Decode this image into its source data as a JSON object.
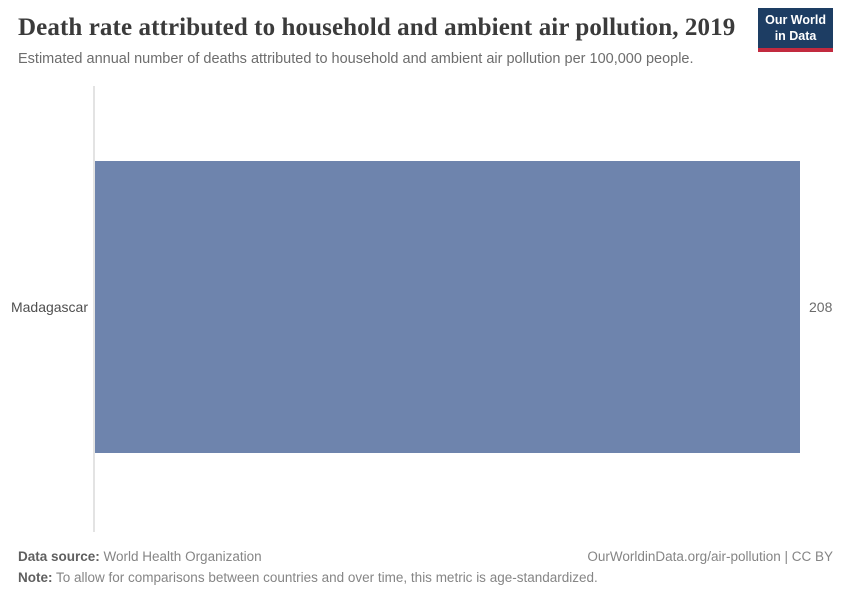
{
  "header": {
    "title": "Death rate attributed to household and ambient air pollution, 2019",
    "subtitle": "Estimated annual number of deaths attributed to household and ambient air pollution per 100,000 people.",
    "logo": {
      "line1": "Our World",
      "line2": "in Data"
    }
  },
  "chart_data": {
    "type": "bar",
    "orientation": "horizontal",
    "categories": [
      "Madagascar"
    ],
    "values": [
      208
    ],
    "title": "Death rate attributed to household and ambient air pollution, 2019",
    "xlabel": "",
    "ylabel": "",
    "xlim": [
      0,
      208
    ],
    "grid": false,
    "legend": false,
    "value_label_position": "right-of-bar"
  },
  "colors": {
    "bar": "#6e84ad",
    "axis_line": "#e3e3e3",
    "logo_background": "#1d3d63",
    "logo_accent": "#c22a3f",
    "title_text": "#3b3b3b",
    "subtitle_text": "#6d6d6d"
  },
  "footer": {
    "datasource_label": "Data source:",
    "datasource_value": " World Health Organization",
    "note_label": "Note:",
    "note_value": " To allow for comparisons between countries and over time, this metric is age-standardized.",
    "license": "OurWorldinData.org/air-pollution | CC BY"
  }
}
